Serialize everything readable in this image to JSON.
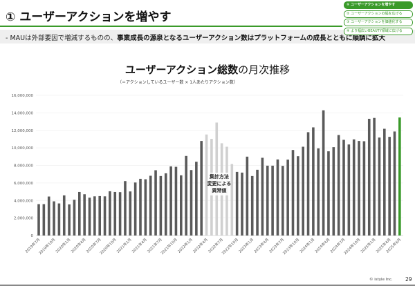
{
  "header": {
    "title": "① ユーザーアクションを増やす",
    "nav": [
      {
        "label": "① ユーザーアクションを増やす",
        "active": true
      },
      {
        "label": "② ユーザーアクションの幅を広げる",
        "active": false
      },
      {
        "label": "③ ユーザーアクションを価値化する",
        "active": false
      },
      {
        "label": "④ より幅広いBEAUTY領域に広げる",
        "active": false
      }
    ]
  },
  "summary": {
    "prefix": "-  MAUは外部要因で増減するものの、",
    "bold": "事業成長の源泉となるユーザーアクション数はプラットフォームの成長とともに順調に拡大"
  },
  "chart_data": {
    "type": "bar",
    "title_bold": "ユーザーアクション総数",
    "title_rest": "の月次推移",
    "subtitle": "（＝アクションしているユーザー数 × 1人あたりアクション数）",
    "ylim": [
      0,
      16000000
    ],
    "yticks": [
      "0",
      "2,000,000",
      "4,000,000",
      "6,000,000",
      "8,000,000",
      "10,000,000",
      "12,000,000",
      "14,000,000",
      "16,000,000"
    ],
    "grid": true,
    "start_month": "2019-07",
    "xtick_labels": [
      "2019年7月",
      "2019年10月",
      "2020年1月",
      "2020年4月",
      "2020年7月",
      "2020年10月",
      "2021年1月",
      "2021年4月",
      "2021年7月",
      "2021年10月",
      "2022年1月",
      "2022年4月",
      "2022年7月",
      "2022年10月",
      "2023年1月",
      "2023年4月",
      "2023年7月",
      "2023年10月",
      "2024年1月",
      "2024年4月",
      "2024年7月",
      "2024年10月",
      "2025年1月",
      "2025年4月",
      "2025年6月"
    ],
    "values": [
      3580000,
      3580000,
      4450000,
      3900000,
      3660000,
      4580000,
      3550000,
      4080000,
      4970000,
      4710000,
      4320000,
      4470000,
      4500000,
      4470000,
      5050000,
      4970000,
      4950000,
      6210000,
      5030000,
      6050000,
      6470000,
      6420000,
      6820000,
      7450000,
      6790000,
      7100000,
      7890000,
      7840000,
      6870000,
      9080000,
      7470000,
      8420000,
      10790000,
      11530000,
      11030000,
      12890000,
      10530000,
      10130000,
      8160000,
      7260000,
      7180000,
      9000000,
      6790000,
      7500000,
      8870000,
      7970000,
      7970000,
      8680000,
      7950000,
      8660000,
      9760000,
      9050000,
      10130000,
      11790000,
      12340000,
      9950000,
      14290000,
      9610000,
      10080000,
      11470000,
      10920000,
      10390000,
      10970000,
      10790000,
      10760000,
      13320000,
      13420000,
      11180000,
      12180000,
      11260000,
      11870000,
      13470000
    ],
    "anomaly_range": [
      "2022年4月",
      "2022年9月"
    ],
    "annotation": [
      "集計方法",
      "変更による",
      "異常値"
    ],
    "colors": {
      "normal": "#5a5a5a",
      "anomaly": "#d0d0d0",
      "latest": "#3a9a2a",
      "accent": "#3a9a2a"
    }
  },
  "footer": {
    "copyright": "© istyle Inc.",
    "page": "29"
  }
}
